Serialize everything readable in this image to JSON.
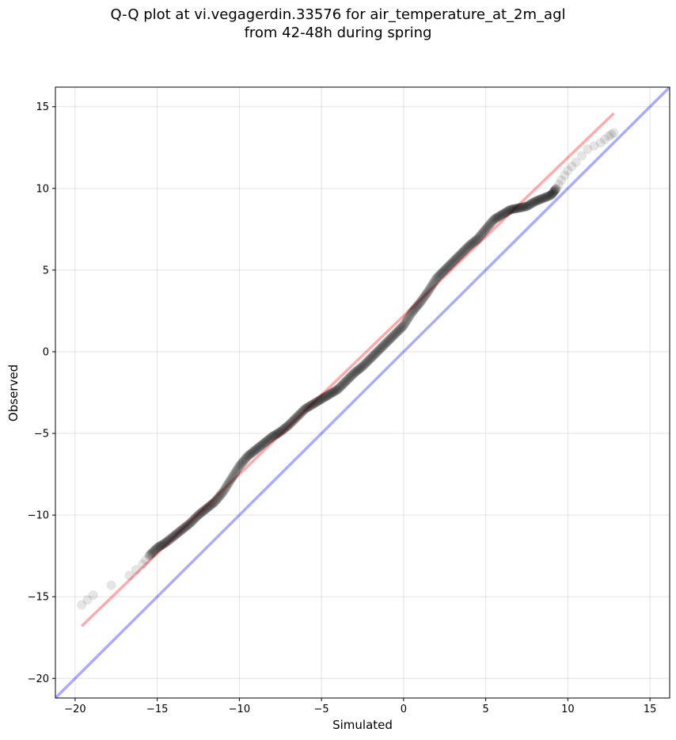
{
  "title_line_1": "Q-Q plot at vi.vegagerdin.33576 for air_temperature_at_2m_agl",
  "title_line_2": "from 42-48h during spring",
  "chart_data": {
    "type": "scatter",
    "title": "Q-Q plot at vi.vegagerdin.33576 for air_temperature_at_2m_agl\nfrom 42-48h during spring",
    "xlabel": "Simulated",
    "ylabel": "Observed",
    "xlim": [
      -21.2,
      16.2
    ],
    "ylim": [
      -21.2,
      16.2
    ],
    "xticks": [
      -20,
      -15,
      -10,
      -5,
      0,
      5,
      10,
      15
    ],
    "yticks": [
      -20,
      -15,
      -10,
      -5,
      0,
      5,
      10,
      15
    ],
    "xtick_labels": [
      "−20",
      "−15",
      "−10",
      "−5",
      "0",
      "5",
      "10",
      "15"
    ],
    "ytick_labels": [
      "−20",
      "−15",
      "−10",
      "−5",
      "0",
      "5",
      "10",
      "15"
    ],
    "grid": true,
    "point_color": "#000000",
    "fit_line_color": "#ff0000",
    "identity_line_color": "#0000ff",
    "fit_line": {
      "x": [
        -19.6,
        12.8
      ],
      "y": [
        -16.8,
        14.6
      ]
    },
    "identity_line": {
      "x": [
        -21.2,
        16.2
      ],
      "y": [
        -21.2,
        16.2
      ]
    },
    "quantile_curve": [
      [
        -19.6,
        -15.5
      ],
      [
        -18.9,
        -14.9
      ],
      [
        -16.7,
        -13.7
      ],
      [
        -15.9,
        -13.0
      ],
      [
        -15.5,
        -12.5
      ],
      [
        -15.0,
        -12.0
      ],
      [
        -14.5,
        -11.7
      ],
      [
        -14.0,
        -11.3
      ],
      [
        -13.5,
        -10.9
      ],
      [
        -13.0,
        -10.5
      ],
      [
        -12.5,
        -10.0
      ],
      [
        -12.0,
        -9.6
      ],
      [
        -11.5,
        -9.2
      ],
      [
        -11.0,
        -8.6
      ],
      [
        -10.5,
        -7.8
      ],
      [
        -10.0,
        -7.0
      ],
      [
        -9.5,
        -6.4
      ],
      [
        -9.0,
        -6.0
      ],
      [
        -8.5,
        -5.6
      ],
      [
        -8.0,
        -5.2
      ],
      [
        -7.5,
        -4.9
      ],
      [
        -7.0,
        -4.5
      ],
      [
        -6.5,
        -4.0
      ],
      [
        -6.0,
        -3.5
      ],
      [
        -5.5,
        -3.2
      ],
      [
        -5.0,
        -2.9
      ],
      [
        -4.5,
        -2.6
      ],
      [
        -4.0,
        -2.3
      ],
      [
        -3.5,
        -1.8
      ],
      [
        -3.0,
        -1.3
      ],
      [
        -2.5,
        -0.9
      ],
      [
        -2.0,
        -0.4
      ],
      [
        -1.5,
        0.1
      ],
      [
        -1.0,
        0.6
      ],
      [
        -0.5,
        1.1
      ],
      [
        0.0,
        1.6
      ],
      [
        0.5,
        2.4
      ],
      [
        1.0,
        3.0
      ],
      [
        1.5,
        3.7
      ],
      [
        2.0,
        4.5
      ],
      [
        2.5,
        5.0
      ],
      [
        3.0,
        5.5
      ],
      [
        3.5,
        6.0
      ],
      [
        4.0,
        6.5
      ],
      [
        4.5,
        6.9
      ],
      [
        5.0,
        7.5
      ],
      [
        5.5,
        8.1
      ],
      [
        6.0,
        8.4
      ],
      [
        6.5,
        8.7
      ],
      [
        7.0,
        8.8
      ],
      [
        7.5,
        8.9
      ],
      [
        8.0,
        9.2
      ],
      [
        8.5,
        9.4
      ],
      [
        9.0,
        9.6
      ],
      [
        9.3,
        10.0
      ],
      [
        9.6,
        10.5
      ],
      [
        10.0,
        11.1
      ],
      [
        10.5,
        11.6
      ],
      [
        11.2,
        12.4
      ],
      [
        12.0,
        12.8
      ],
      [
        12.5,
        13.2
      ],
      [
        12.8,
        13.4
      ]
    ]
  }
}
